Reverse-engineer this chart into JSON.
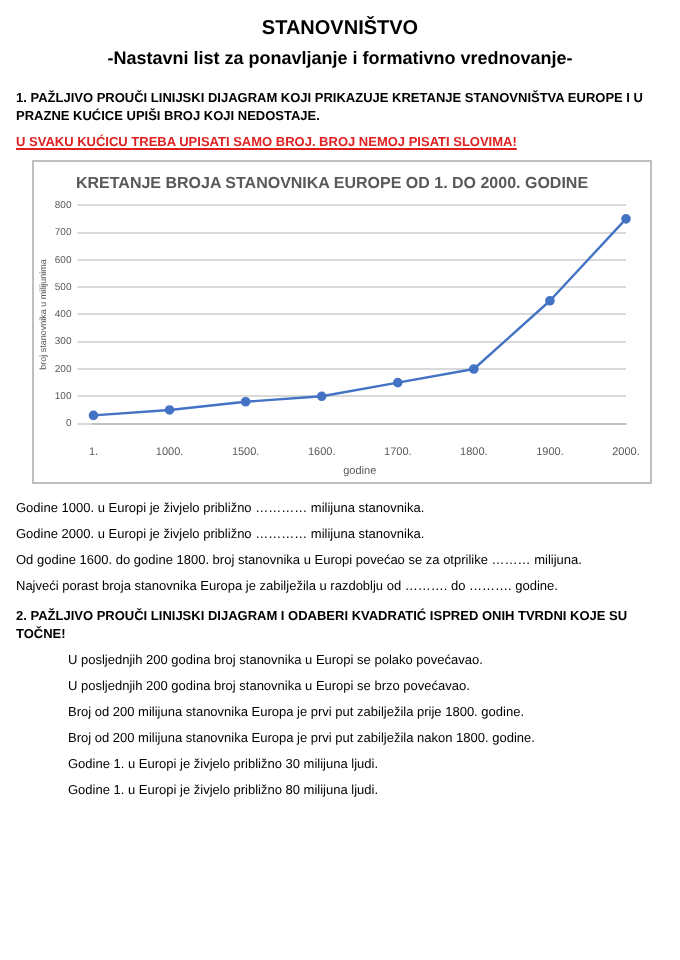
{
  "chart_data": {
    "type": "line",
    "title": "KRETANJE BROJA STANOVNIKA EUROPE OD 1. DO 2000. GODINE",
    "xlabel": "godine",
    "ylabel": "broj stanovnika u milijunima",
    "categories": [
      "1.",
      "1000.",
      "1500.",
      "1600.",
      "1700.",
      "1800.",
      "1900.",
      "2000."
    ],
    "series": [
      {
        "color": "#4472c4",
        "values": [
          30,
          50,
          80,
          100,
          150,
          200,
          450,
          750
        ]
      }
    ],
    "ylim": [
      0,
      800
    ],
    "yticks": [
      0,
      100,
      200,
      300,
      400,
      500,
      600,
      700,
      800
    ],
    "grid": "y",
    "marker": "circle",
    "line_style": "solid",
    "legend": false,
    "annotations": [
      "STANOVNIŠTVO",
      "-Nastavni list za ponavljanje i formativno vrednovanje-",
      "1. PAŽLJIVO PROUČI LINIJSKI DIJAGRAM KOJI PRIKAZUJE KRETANJE STANOVNIŠTVA EUROPE I U PRAZNE KUĆICE UPIŠI BROJ KOJI NEDOSTAJE.",
      "U SVAKU KUĆICU TREBA UPISATI SAMO BROJ. BROJ NEMOJ PISATI SLOVIMA!",
      "Godine 1000. u Europi je živjelo približno ………… milijuna stanovnika.",
      "Godine 2000. u Europi je živjelo približno ………… milijuna stanovnika.",
      "Od godine 1600. do godine 1800. broj stanovnika u Europi povećao se za otprilike ……… milijuna.",
      "Najveći porast broja stanovnika Europa je zabilježila u razdoblju od ………. do ………. godine.",
      "2. PAŽLJIVO PROUČI LINIJSKI DIJAGRAM I ODABERI KVADRATIĆ ISPRED ONIH TVRDNI KOJE SU TOČNE!",
      "U posljednjih 200 godina broj stanovnika u Europi se polako povećavao.",
      "U posljednjih 200 godina broj stanovnika u Europi se brzo povećavao.",
      "Broj od 200 milijuna stanovnika Europa je prvi put zabilježila prije 1800. godine.",
      "Broj od 200 milijuna stanovnika Europa je prvi put zabilježila nakon 1800. godine.",
      "Godine 1. u Europi je živjelo približno 30 milijuna ljudi.",
      "Godine 1. u Europi je živjelo približno 80 milijuna ljudi."
    ]
  }
}
